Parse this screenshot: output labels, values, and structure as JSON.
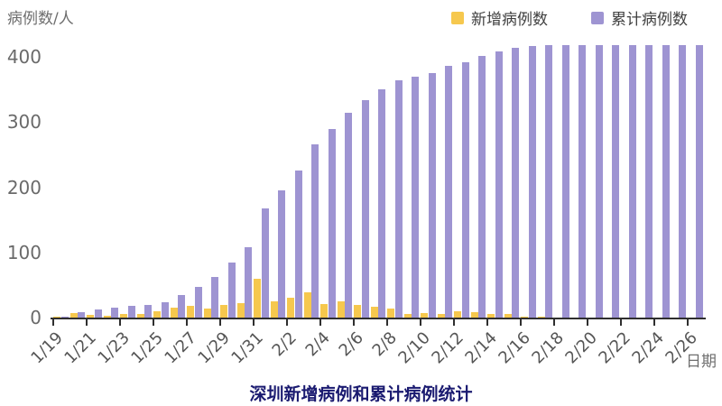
{
  "title": "深圳新增病例和累计病例统计",
  "y_axis": {
    "unit_label": "病例数/人",
    "ticks": [
      "0",
      "100",
      "200",
      "300",
      "400"
    ]
  },
  "x_axis": {
    "label": "日期",
    "tick_labels": [
      "1/19",
      "1/21",
      "1/23",
      "1/25",
      "1/27",
      "1/29",
      "1/31",
      "2/2",
      "2/4",
      "2/6",
      "2/8",
      "2/10",
      "2/12",
      "2/14",
      "2/16",
      "2/18",
      "2/20",
      "2/22",
      "2/24",
      "2/26"
    ]
  },
  "legend": [
    {
      "label": "新增病例数",
      "color": "#F6C84E"
    },
    {
      "label": "累计病例数",
      "color": "#9E94D2"
    }
  ],
  "colors": {
    "new_cases": "#F6C84E",
    "cumulative_cases": "#9E94D2",
    "title": "#1a1a70",
    "axis_line": "#2f2f2f",
    "axis_text": "#6a6a6a"
  },
  "chart_data": {
    "type": "bar",
    "categories": [
      "1/19",
      "1/20",
      "1/21",
      "1/22",
      "1/23",
      "1/24",
      "1/25",
      "1/26",
      "1/27",
      "1/28",
      "1/29",
      "1/30",
      "1/31",
      "2/1",
      "2/2",
      "2/3",
      "2/4",
      "2/5",
      "2/6",
      "2/7",
      "2/8",
      "2/9",
      "2/10",
      "2/11",
      "2/12",
      "2/13",
      "2/14",
      "2/15",
      "2/16",
      "2/17",
      "2/18",
      "2/19",
      "2/20",
      "2/21",
      "2/22",
      "2/23",
      "2/24",
      "2/25",
      "2/26"
    ],
    "series": [
      {
        "name": "新增病例数",
        "color": "#F6C84E",
        "values": [
          1,
          7,
          4,
          3,
          5,
          6,
          10,
          15,
          18,
          14,
          20,
          22,
          59,
          25,
          30,
          39,
          21,
          25,
          19,
          17,
          14,
          6,
          7,
          5,
          10,
          8,
          5,
          6,
          2,
          1,
          0,
          0,
          0,
          0,
          0,
          0,
          0,
          0,
          0
        ]
      },
      {
        "name": "累计病例数",
        "color": "#9E94D2",
        "values": [
          1,
          8,
          12,
          15,
          18,
          20,
          24,
          34,
          47,
          62,
          84,
          108,
          167,
          195,
          226,
          266,
          289,
          314,
          334,
          350,
          364,
          369,
          375,
          386,
          392,
          401,
          408,
          414,
          417,
          418,
          418,
          418,
          418,
          418,
          418,
          418,
          418,
          418,
          418
        ]
      }
    ],
    "title": "深圳新增病例和累计病例统计",
    "xlabel": "日期",
    "ylabel": "病例数/人",
    "ylim": [
      0,
      400
    ],
    "grid": false,
    "legend_position": "top-right"
  }
}
